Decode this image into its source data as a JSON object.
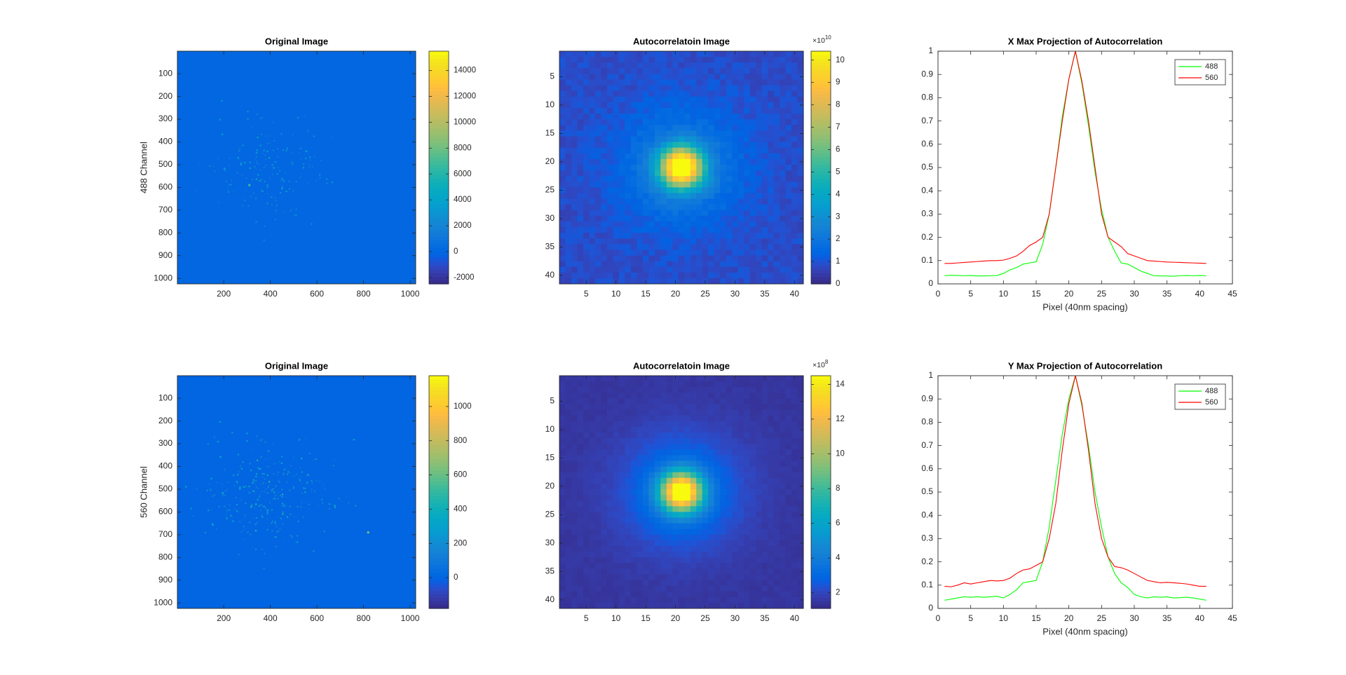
{
  "figure": {
    "background": "#ffffff",
    "ylabels": {
      "row1": "488 Channel",
      "row2": "560 Channel"
    }
  },
  "chart_data": [
    {
      "id": "orig488",
      "type": "heatmap",
      "title": "Original Image",
      "ylabel": "488 Channel",
      "xlim": [
        1,
        1024
      ],
      "ylim": [
        1,
        1024
      ],
      "y_reversed": true,
      "xticks": [
        200,
        400,
        600,
        800,
        1000
      ],
      "yticks": [
        100,
        200,
        300,
        400,
        500,
        600,
        700,
        800,
        900,
        1000
      ],
      "background_value": 0,
      "colorbar": {
        "clim": [
          -2500,
          15500
        ],
        "ticks": [
          -2000,
          0,
          2000,
          4000,
          6000,
          8000,
          10000,
          12000,
          14000
        ],
        "ticklabels": [
          "-2000",
          "0",
          "2000",
          "4000",
          "6000",
          "8000",
          "10000",
          "12000",
          "14000"
        ],
        "exponent": ""
      },
      "colormap": "parula",
      "spots": {
        "count": 170,
        "center": [
          380,
          520
        ],
        "spread": [
          230,
          200
        ],
        "max_level": 0.3,
        "brightest": [
          310,
          590
        ]
      }
    },
    {
      "id": "auto488",
      "type": "heatmap",
      "title": "Autocorrelatoin Image",
      "xlim": [
        0.5,
        41.5
      ],
      "ylim": [
        0.5,
        41.5
      ],
      "y_reversed": true,
      "xticks": [
        5,
        10,
        15,
        20,
        25,
        30,
        35,
        40
      ],
      "yticks": [
        5,
        10,
        15,
        20,
        25,
        30,
        35,
        40
      ],
      "grid_size": 41,
      "peak": [
        21,
        21
      ],
      "colorbar": {
        "clim": [
          0,
          10.4
        ],
        "ticks": [
          0,
          1,
          2,
          3,
          4,
          5,
          6,
          7,
          8,
          9,
          10
        ],
        "ticklabels": [
          "0",
          "1",
          "2",
          "3",
          "4",
          "5",
          "6",
          "7",
          "8",
          "9",
          "10"
        ],
        "exponent": "10"
      },
      "colormap": "parula"
    },
    {
      "id": "xproj",
      "type": "line",
      "title": "X Max Projection of Autocorrelation",
      "xlabel": "Pixel (40nm spacing)",
      "xlim": [
        0,
        45
      ],
      "ylim": [
        0,
        1
      ],
      "xticks": [
        0,
        5,
        10,
        15,
        20,
        25,
        30,
        35,
        40,
        45
      ],
      "yticks": [
        0,
        0.1,
        0.2,
        0.3,
        0.4,
        0.5,
        0.6,
        0.7,
        0.8,
        0.9,
        1
      ],
      "x": [
        1,
        2,
        3,
        4,
        5,
        6,
        7,
        8,
        9,
        10,
        11,
        12,
        13,
        14,
        15,
        16,
        17,
        18,
        19,
        20,
        21,
        22,
        23,
        24,
        25,
        26,
        27,
        28,
        29,
        30,
        31,
        32,
        33,
        34,
        35,
        36,
        37,
        38,
        39,
        40,
        41
      ],
      "series": [
        {
          "name": "488",
          "color": "#00ff00",
          "values": [
            0.035,
            0.037,
            0.036,
            0.035,
            0.036,
            0.034,
            0.034,
            0.035,
            0.036,
            0.045,
            0.06,
            0.07,
            0.085,
            0.09,
            0.095,
            0.17,
            0.3,
            0.5,
            0.72,
            0.88,
            1.0,
            0.86,
            0.68,
            0.48,
            0.32,
            0.2,
            0.14,
            0.09,
            0.085,
            0.07,
            0.055,
            0.045,
            0.035,
            0.034,
            0.034,
            0.033,
            0.035,
            0.036,
            0.035,
            0.036,
            0.035
          ]
        },
        {
          "name": "560",
          "color": "#ff0000",
          "values": [
            0.088,
            0.088,
            0.09,
            0.092,
            0.094,
            0.096,
            0.098,
            0.1,
            0.1,
            0.102,
            0.11,
            0.12,
            0.14,
            0.165,
            0.18,
            0.2,
            0.3,
            0.5,
            0.7,
            0.88,
            1.0,
            0.87,
            0.7,
            0.5,
            0.3,
            0.2,
            0.18,
            0.16,
            0.13,
            0.12,
            0.11,
            0.1,
            0.098,
            0.096,
            0.094,
            0.093,
            0.092,
            0.091,
            0.09,
            0.089,
            0.088
          ]
        }
      ],
      "legend": "top-right"
    },
    {
      "id": "orig560",
      "type": "heatmap",
      "title": "Original Image",
      "ylabel": "560 Channel",
      "xlim": [
        1,
        1024
      ],
      "ylim": [
        1,
        1024
      ],
      "y_reversed": true,
      "xticks": [
        200,
        400,
        600,
        800,
        1000
      ],
      "yticks": [
        100,
        200,
        300,
        400,
        500,
        600,
        700,
        800,
        900,
        1000
      ],
      "background_value": 0,
      "colorbar": {
        "clim": [
          -180,
          1180
        ],
        "ticks": [
          0,
          200,
          400,
          600,
          800,
          1000
        ],
        "ticklabels": [
          "0",
          "200",
          "400",
          "600",
          "800",
          "1000"
        ],
        "exponent": ""
      },
      "colormap": "parula",
      "spots": {
        "count": 300,
        "center": [
          380,
          520
        ],
        "spread": [
          240,
          210
        ],
        "max_level": 0.38,
        "brightest": [
          820,
          690
        ]
      }
    },
    {
      "id": "auto560",
      "type": "heatmap",
      "title": "Autocorrelatoin Image",
      "xlim": [
        0.5,
        41.5
      ],
      "ylim": [
        0.5,
        41.5
      ],
      "y_reversed": true,
      "xticks": [
        5,
        10,
        15,
        20,
        25,
        30,
        35,
        40
      ],
      "yticks": [
        5,
        10,
        15,
        20,
        25,
        30,
        35,
        40
      ],
      "grid_size": 41,
      "peak": [
        21,
        21
      ],
      "colorbar": {
        "clim": [
          1.1,
          14.5
        ],
        "ticks": [
          2,
          4,
          6,
          8,
          10,
          12,
          14
        ],
        "ticklabels": [
          "2",
          "4",
          "6",
          "8",
          "10",
          "12",
          "14"
        ],
        "exponent": "8"
      },
      "colormap": "parula"
    },
    {
      "id": "yproj",
      "type": "line",
      "title": "Y Max Projection of Autocorrelation",
      "xlabel": "Pixel (40nm spacing)",
      "xlim": [
        0,
        45
      ],
      "ylim": [
        0,
        1
      ],
      "xticks": [
        0,
        5,
        10,
        15,
        20,
        25,
        30,
        35,
        40,
        45
      ],
      "yticks": [
        0,
        0.1,
        0.2,
        0.3,
        0.4,
        0.5,
        0.6,
        0.7,
        0.8,
        0.9,
        1
      ],
      "x": [
        1,
        2,
        3,
        4,
        5,
        6,
        7,
        8,
        9,
        10,
        11,
        12,
        13,
        14,
        15,
        16,
        17,
        18,
        19,
        20,
        21,
        22,
        23,
        24,
        25,
        26,
        27,
        28,
        29,
        30,
        31,
        32,
        33,
        34,
        35,
        36,
        37,
        38,
        39,
        40,
        41
      ],
      "series": [
        {
          "name": "488",
          "color": "#00ff00",
          "values": [
            0.035,
            0.04,
            0.045,
            0.05,
            0.048,
            0.05,
            0.048,
            0.05,
            0.052,
            0.045,
            0.06,
            0.08,
            0.11,
            0.115,
            0.12,
            0.2,
            0.35,
            0.55,
            0.75,
            0.9,
            1.0,
            0.87,
            0.7,
            0.5,
            0.35,
            0.22,
            0.15,
            0.11,
            0.09,
            0.06,
            0.05,
            0.045,
            0.05,
            0.048,
            0.05,
            0.045,
            0.046,
            0.048,
            0.045,
            0.04,
            0.035
          ]
        },
        {
          "name": "560",
          "color": "#ff0000",
          "values": [
            0.095,
            0.093,
            0.1,
            0.11,
            0.105,
            0.11,
            0.115,
            0.12,
            0.118,
            0.12,
            0.13,
            0.15,
            0.165,
            0.17,
            0.185,
            0.2,
            0.3,
            0.45,
            0.68,
            0.88,
            1.0,
            0.88,
            0.68,
            0.45,
            0.3,
            0.22,
            0.18,
            0.175,
            0.165,
            0.15,
            0.135,
            0.12,
            0.115,
            0.11,
            0.112,
            0.11,
            0.108,
            0.105,
            0.1,
            0.095,
            0.095
          ]
        }
      ],
      "legend": "top-right"
    }
  ]
}
